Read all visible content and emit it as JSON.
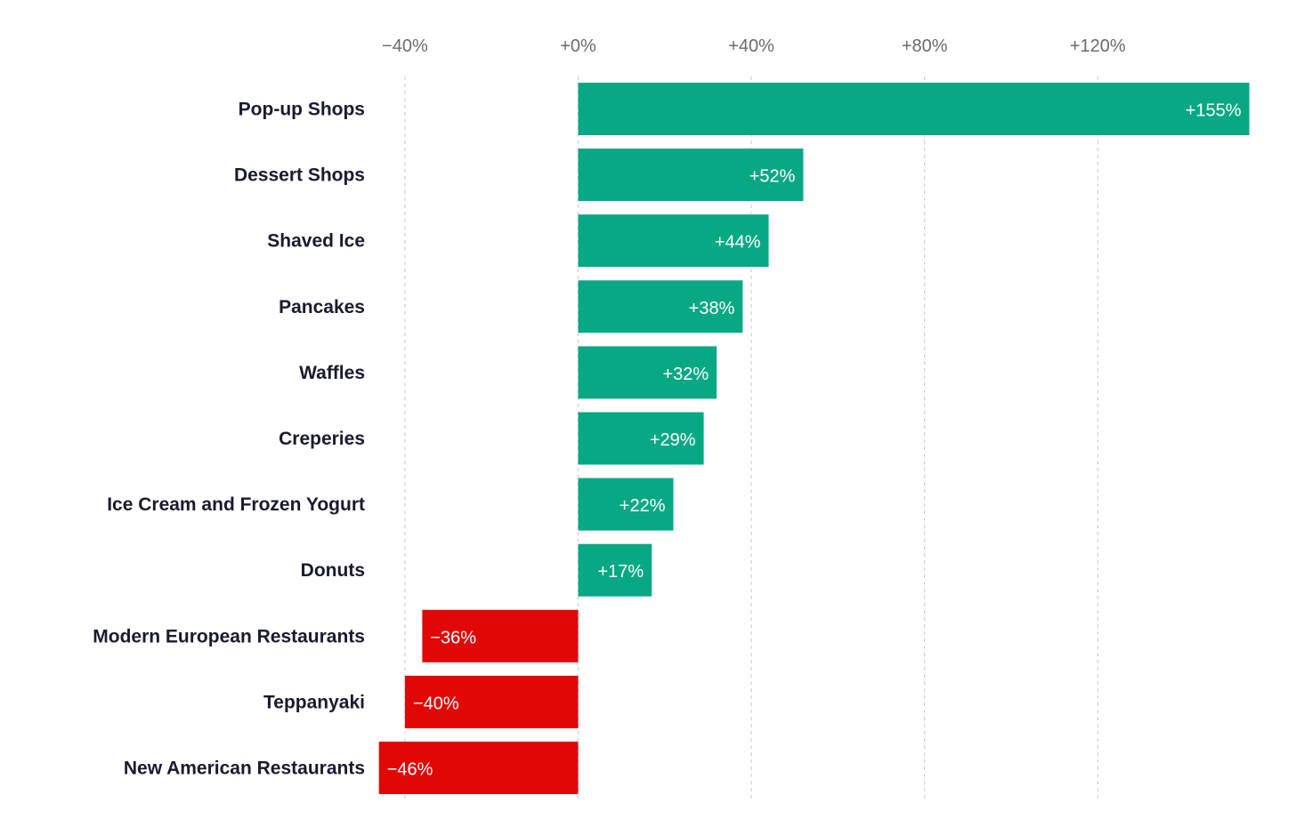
{
  "chart_data": {
    "type": "bar",
    "orientation": "horizontal",
    "title": "",
    "xlabel": "",
    "ylabel": "",
    "categories": [
      "Pop-up Shops",
      "Dessert Shops",
      "Shaved Ice",
      "Pancakes",
      "Waffles",
      "Creperies",
      "Ice Cream and Frozen Yogurt",
      "Donuts",
      "Modern European Restaurants",
      "Teppanyaki",
      "New American Restaurants"
    ],
    "values": [
      155,
      52,
      44,
      38,
      32,
      29,
      22,
      17,
      -36,
      -40,
      -46
    ],
    "value_labels": [
      "+155%",
      "+52%",
      "+44%",
      "+38%",
      "+32%",
      "+29%",
      "+22%",
      "+17%",
      "−36%",
      "−40%",
      "−46%"
    ],
    "xlim": [
      -46,
      155
    ],
    "ticks": [
      -40,
      0,
      40,
      80,
      120
    ],
    "tick_labels": [
      "−40%",
      "+0%",
      "+40%",
      "+80%",
      "+120%"
    ],
    "grid": true,
    "axis_position": "top",
    "colors": {
      "positive": "#08a884",
      "negative": "#e10707",
      "gridline": "#c8c8c8",
      "category_text": "#1a1a2e",
      "tick_text": "#6b6b6b",
      "value_text": "#ffffff"
    }
  }
}
